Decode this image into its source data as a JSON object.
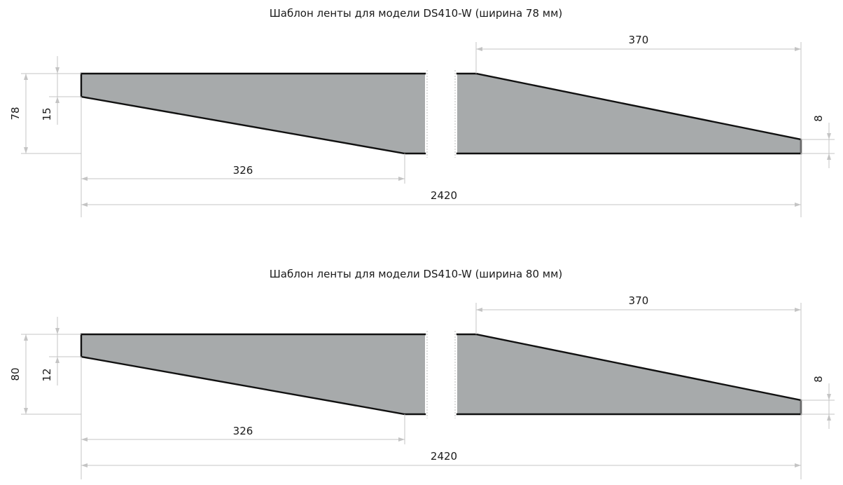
{
  "diagrams": [
    {
      "title": "Шаблон ленты для модели DS410-W (ширина 78 мм)",
      "width_label": "78",
      "left_edge_label": "15",
      "left_taper_label": "326",
      "right_taper_label": "370",
      "right_edge_label": "8",
      "total_length_label": "2420"
    },
    {
      "title": "Шаблон ленты для модели DS410-W (ширина 80 мм)",
      "width_label": "80",
      "left_edge_label": "12",
      "left_taper_label": "326",
      "right_taper_label": "370",
      "right_edge_label": "8",
      "total_length_label": "2420"
    }
  ],
  "colors": {
    "strip_fill": "#a7aaab",
    "strip_edge": "#111111",
    "dimension_line": "#c4c4c4"
  }
}
